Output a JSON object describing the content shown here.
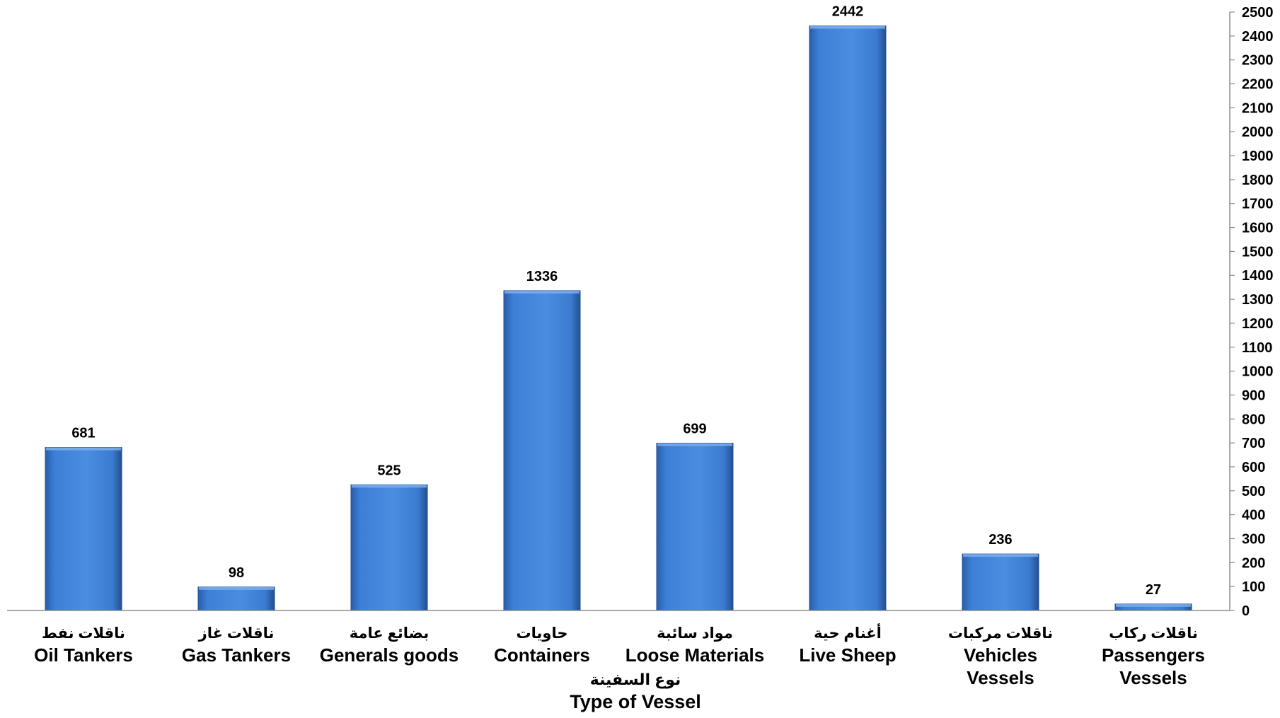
{
  "chart_data": {
    "type": "bar",
    "categories": [
      {
        "ar": "ناقلات نفط",
        "en": [
          "Oil Tankers"
        ]
      },
      {
        "ar": "ناقلات غاز",
        "en": [
          "Gas Tankers"
        ]
      },
      {
        "ar": "بضائع عامة",
        "en": [
          "Generals goods"
        ]
      },
      {
        "ar": "حاويات",
        "en": [
          "Containers"
        ]
      },
      {
        "ar": "مواد سائبة",
        "en": [
          "Loose Materials"
        ]
      },
      {
        "ar": "أغنام حية",
        "en": [
          "Live Sheep"
        ]
      },
      {
        "ar": "ناقلات مركبات",
        "en": [
          "Vehicles",
          "Vessels"
        ]
      },
      {
        "ar": "ناقلات ركاب",
        "en": [
          "Passengers",
          "Vessels"
        ]
      }
    ],
    "values": [
      681,
      98,
      525,
      1336,
      699,
      2442,
      236,
      27
    ],
    "xlabel_ar": "نوع السفينة",
    "xlabel_en": "Type of Vessel",
    "ylim": [
      0,
      2500
    ],
    "ytick_step": 100,
    "yaxis_side": "right",
    "grid": false,
    "legend": "none",
    "bar_color": "#3b7fd4"
  }
}
